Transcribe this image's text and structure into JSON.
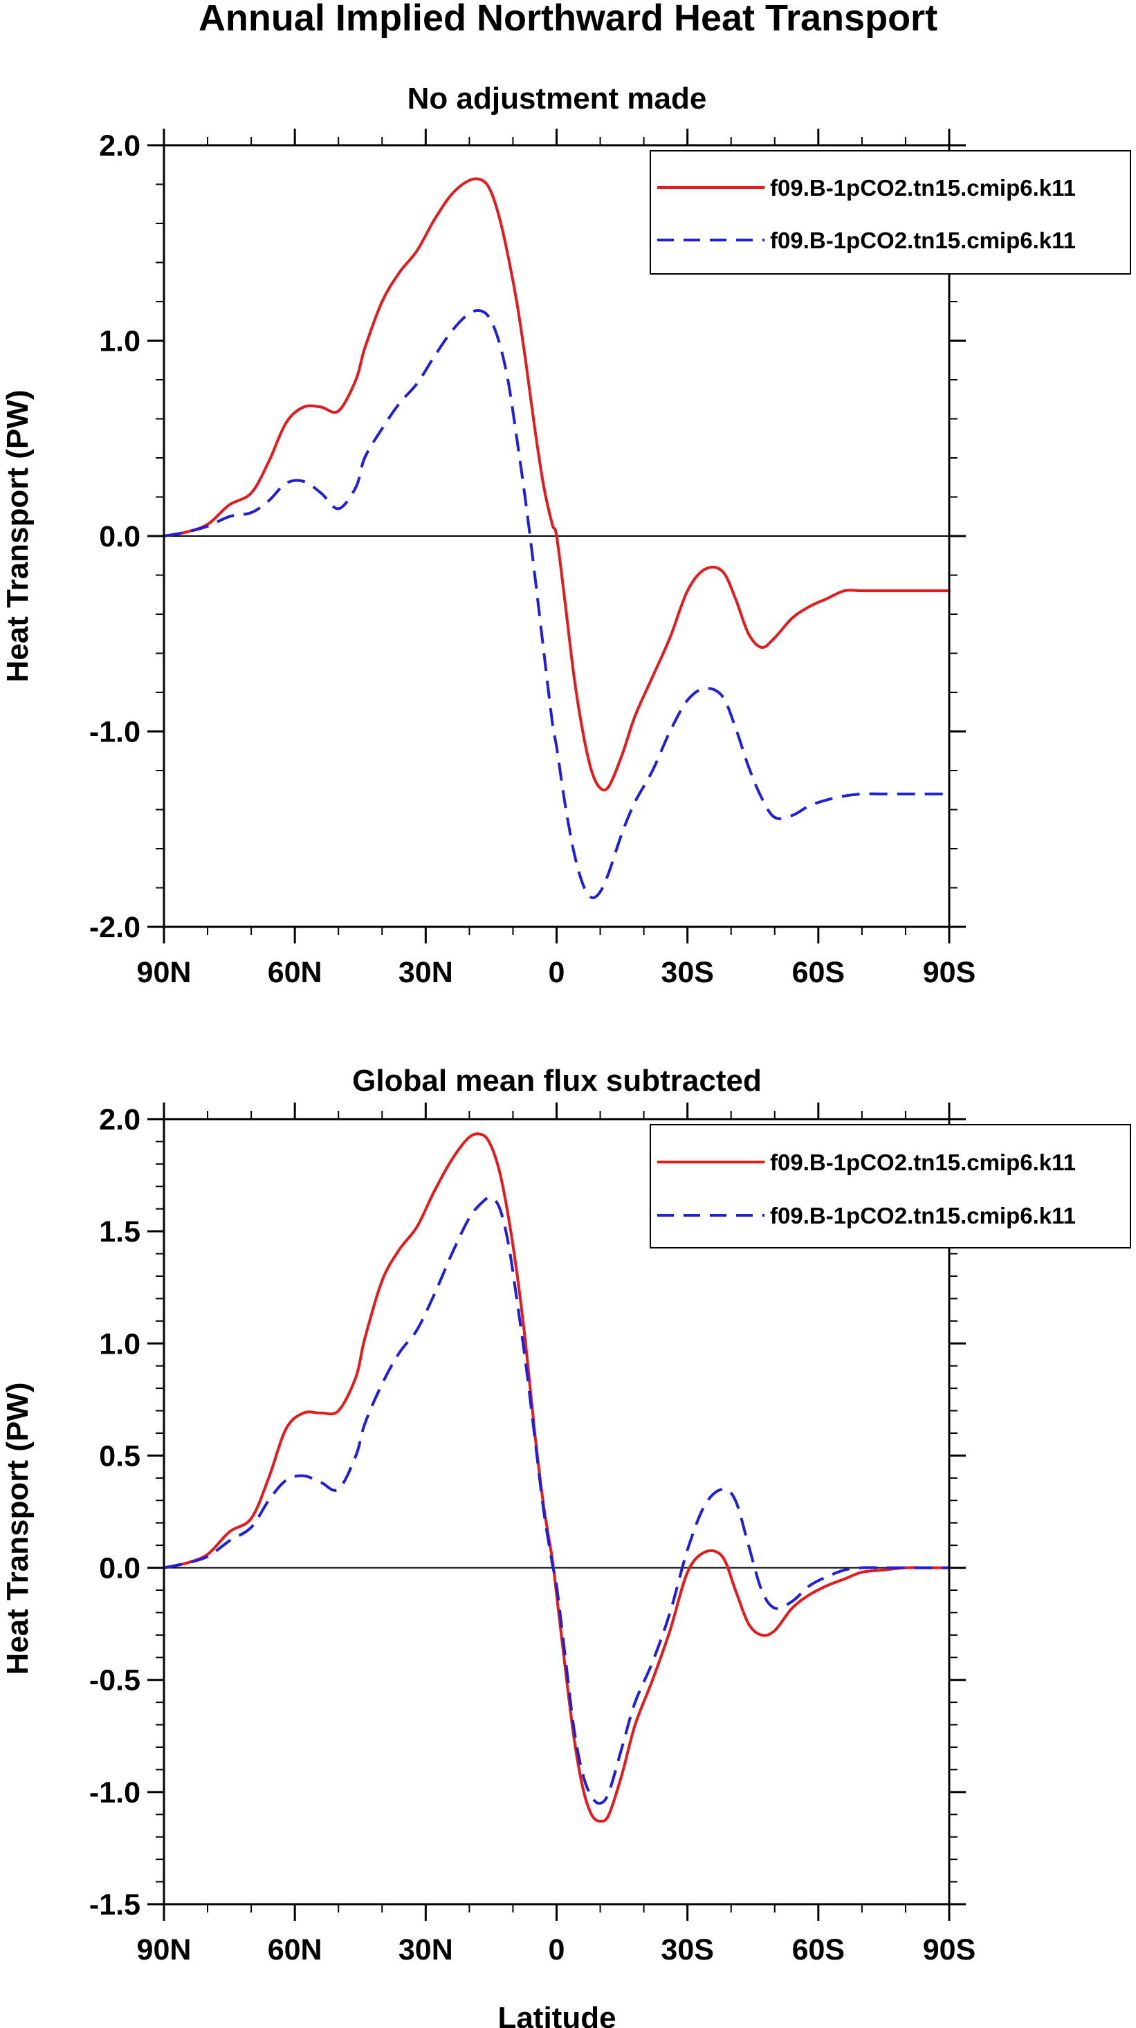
{
  "figure_title": "Annual Implied Northward Heat Transport",
  "xlabel": "Latitude",
  "series_colors": {
    "model_a": "#e41a1c",
    "model_b": "#1f1fd8"
  },
  "chart_data": [
    {
      "type": "line",
      "title": "No adjustment made",
      "ylabel": "Heat Transport (PW)",
      "xlabel": "",
      "xlim": [
        -90,
        90
      ],
      "ylim": [
        -2.0,
        2.0
      ],
      "x_ticks": [
        -90,
        -60,
        -30,
        0,
        30,
        60,
        90
      ],
      "x_tick_labels": [
        "90N",
        "60N",
        "30N",
        "0",
        "30S",
        "60S",
        "90S"
      ],
      "y_ticks": [
        -2.0,
        -1.0,
        0.0,
        1.0,
        2.0
      ],
      "y_tick_labels": [
        "-2.0",
        "-1.0",
        "0.0",
        "1.0",
        "2.0"
      ],
      "y_minor_step": 0.2,
      "zero_line": true,
      "legend_position": "top-right",
      "x": [
        -90,
        -85,
        -80,
        -75,
        -70,
        -66,
        -62,
        -58,
        -54,
        -50,
        -46,
        -44,
        -40,
        -36,
        -32,
        -28,
        -24,
        -20,
        -17,
        -15,
        -13,
        -11,
        -9,
        -7,
        -5,
        -3,
        -1,
        0,
        2,
        4,
        6,
        8,
        10,
        12,
        15,
        18,
        22,
        26,
        30,
        34,
        38,
        41,
        44,
        47,
        50,
        54,
        58,
        62,
        66,
        70,
        75,
        80,
        85,
        90
      ],
      "series": [
        {
          "name": "f09.B-1pCO2.tn15.cmip6.k11",
          "color": "#e41a1c",
          "dash": "solid",
          "values": [
            0.0,
            0.02,
            0.06,
            0.16,
            0.22,
            0.38,
            0.58,
            0.66,
            0.66,
            0.64,
            0.8,
            0.96,
            1.2,
            1.35,
            1.46,
            1.62,
            1.75,
            1.82,
            1.82,
            1.76,
            1.62,
            1.42,
            1.18,
            0.88,
            0.55,
            0.26,
            0.06,
            0.0,
            -0.35,
            -0.72,
            -1.0,
            -1.2,
            -1.29,
            -1.28,
            -1.12,
            -0.92,
            -0.72,
            -0.52,
            -0.28,
            -0.17,
            -0.18,
            -0.32,
            -0.5,
            -0.57,
            -0.52,
            -0.42,
            -0.36,
            -0.32,
            -0.28,
            -0.28,
            -0.28,
            -0.28,
            -0.28,
            -0.28
          ]
        },
        {
          "name": "f09.B-1pCO2.tn15.cmip6.k11",
          "color": "#1f1fd8",
          "dash": "dashed",
          "values": [
            0.0,
            0.02,
            0.05,
            0.1,
            0.12,
            0.18,
            0.27,
            0.28,
            0.22,
            0.14,
            0.25,
            0.4,
            0.55,
            0.68,
            0.78,
            0.92,
            1.05,
            1.14,
            1.15,
            1.1,
            0.98,
            0.78,
            0.48,
            0.16,
            -0.2,
            -0.58,
            -0.95,
            -1.08,
            -1.38,
            -1.62,
            -1.78,
            -1.85,
            -1.82,
            -1.72,
            -1.52,
            -1.36,
            -1.2,
            -1.0,
            -0.84,
            -0.78,
            -0.82,
            -0.98,
            -1.18,
            -1.34,
            -1.44,
            -1.43,
            -1.38,
            -1.35,
            -1.33,
            -1.32,
            -1.32,
            -1.32,
            -1.32,
            -1.32
          ]
        }
      ]
    },
    {
      "type": "line",
      "title": "Global mean flux subtracted",
      "ylabel": "Heat Transport (PW)",
      "xlabel": "Latitude",
      "xlim": [
        -90,
        90
      ],
      "ylim": [
        -1.5,
        2.0
      ],
      "x_ticks": [
        -90,
        -60,
        -30,
        0,
        30,
        60,
        90
      ],
      "x_tick_labels": [
        "90N",
        "60N",
        "30N",
        "0",
        "30S",
        "60S",
        "90S"
      ],
      "y_ticks": [
        -1.5,
        -1.0,
        -0.5,
        0.0,
        0.5,
        1.0,
        1.5,
        2.0
      ],
      "y_tick_labels": [
        "-1.5",
        "-1.0",
        "-0.5",
        "0.0",
        "0.5",
        "1.0",
        "1.5",
        "2.0"
      ],
      "y_minor_step": 0.1,
      "zero_line": true,
      "legend_position": "top-right",
      "x": [
        -90,
        -85,
        -80,
        -75,
        -70,
        -66,
        -62,
        -58,
        -54,
        -50,
        -46,
        -44,
        -40,
        -36,
        -32,
        -28,
        -24,
        -20,
        -17,
        -15,
        -13,
        -11,
        -9,
        -7,
        -5,
        -3,
        -1,
        0,
        2,
        4,
        6,
        8,
        10,
        12,
        15,
        18,
        22,
        26,
        30,
        34,
        38,
        41,
        44,
        47,
        50,
        54,
        58,
        62,
        66,
        70,
        75,
        80,
        85,
        90
      ],
      "series": [
        {
          "name": "f09.B-1pCO2.tn15.cmip6.k11",
          "color": "#e41a1c",
          "dash": "solid",
          "values": [
            0.0,
            0.02,
            0.06,
            0.16,
            0.22,
            0.4,
            0.62,
            0.69,
            0.69,
            0.7,
            0.85,
            1.02,
            1.28,
            1.42,
            1.52,
            1.68,
            1.82,
            1.92,
            1.93,
            1.88,
            1.76,
            1.56,
            1.3,
            0.98,
            0.6,
            0.28,
            0.04,
            -0.12,
            -0.45,
            -0.76,
            -0.98,
            -1.1,
            -1.13,
            -1.1,
            -0.92,
            -0.7,
            -0.5,
            -0.28,
            -0.02,
            0.07,
            0.05,
            -0.1,
            -0.25,
            -0.3,
            -0.28,
            -0.18,
            -0.12,
            -0.08,
            -0.05,
            -0.02,
            -0.01,
            0.0,
            0.0,
            0.0
          ]
        },
        {
          "name": "f09.B-1pCO2.tn15.cmip6.k11",
          "color": "#1f1fd8",
          "dash": "dashed",
          "values": [
            0.0,
            0.02,
            0.05,
            0.12,
            0.18,
            0.3,
            0.39,
            0.41,
            0.38,
            0.35,
            0.5,
            0.64,
            0.82,
            0.96,
            1.06,
            1.22,
            1.4,
            1.56,
            1.63,
            1.65,
            1.6,
            1.44,
            1.18,
            0.9,
            0.58,
            0.26,
            0.02,
            -0.08,
            -0.4,
            -0.72,
            -0.92,
            -1.02,
            -1.05,
            -1.0,
            -0.8,
            -0.6,
            -0.42,
            -0.2,
            0.08,
            0.28,
            0.35,
            0.3,
            0.1,
            -0.1,
            -0.18,
            -0.15,
            -0.08,
            -0.04,
            -0.01,
            0.0,
            0.0,
            0.0,
            0.0,
            0.0
          ]
        }
      ]
    }
  ]
}
